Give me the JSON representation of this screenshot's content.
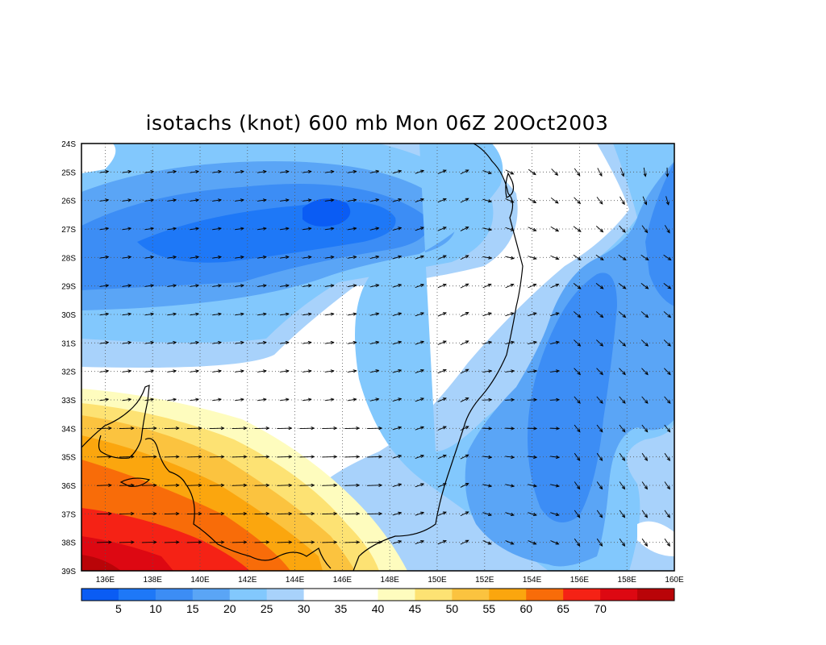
{
  "title": "isotachs (knot) 600 mb Mon 06Z 20Oct2003",
  "map": {
    "lon_range": [
      135,
      160
    ],
    "lat_range": [
      -39,
      -24
    ],
    "lon_ticks": [
      "136E",
      "138E",
      "140E",
      "142E",
      "144E",
      "146E",
      "148E",
      "150E",
      "152E",
      "154E",
      "156E",
      "158E",
      "160E"
    ],
    "lat_ticks": [
      "24S",
      "25S",
      "26S",
      "27S",
      "28S",
      "29S",
      "30S",
      "31S",
      "32S",
      "33S",
      "34S",
      "35S",
      "36S",
      "37S",
      "38S",
      "39S"
    ],
    "features": [
      "wind-speed-isotach-fill",
      "wind-vectors",
      "coastline",
      "dotted-lat-lon-grid"
    ]
  },
  "colorbar": {
    "labels": [
      "5",
      "10",
      "15",
      "20",
      "25",
      "30",
      "35",
      "40",
      "45",
      "50",
      "55",
      "60",
      "65",
      "70"
    ],
    "colors": [
      "#0a5cf4",
      "#1e78f7",
      "#3c8df5",
      "#5aa5f6",
      "#82c8fd",
      "#a8d2fb",
      "#ffffff",
      "#ffffff",
      "#fefcbe",
      "#fde273",
      "#fbc33f",
      "#fba60e",
      "#f86c09",
      "#f52215",
      "#dd0812",
      "#b90408"
    ]
  }
}
